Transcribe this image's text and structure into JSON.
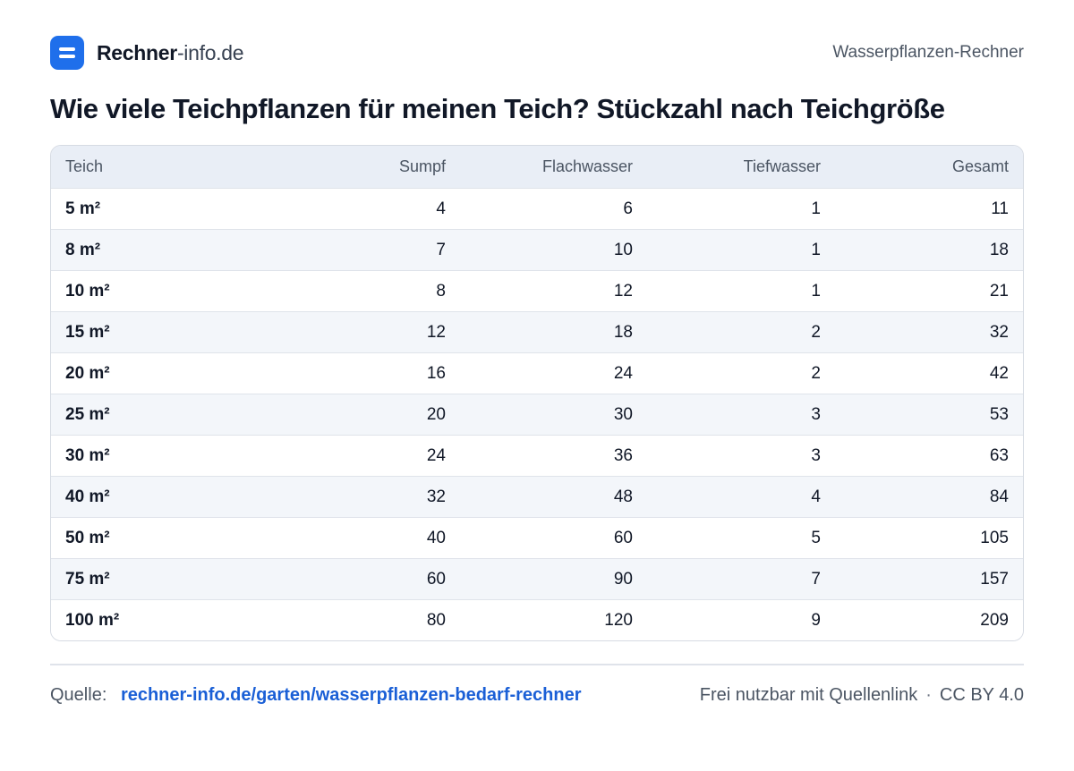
{
  "header": {
    "brand_strong": "Rechner",
    "brand_light": "-info.de",
    "logo_icon": "equals-icon",
    "right_label": "Wasserpflanzen-Rechner"
  },
  "title": "Wie viele Teichpflanzen für meinen Teich? Stückzahl nach Teichgröße",
  "table": {
    "columns": [
      "Teich",
      "Sumpf",
      "Flachwasser",
      "Tiefwasser",
      "Gesamt"
    ],
    "rows": [
      [
        "5 m²",
        "4",
        "6",
        "1",
        "11"
      ],
      [
        "8 m²",
        "7",
        "10",
        "1",
        "18"
      ],
      [
        "10 m²",
        "8",
        "12",
        "1",
        "21"
      ],
      [
        "15 m²",
        "12",
        "18",
        "2",
        "32"
      ],
      [
        "20 m²",
        "16",
        "24",
        "2",
        "42"
      ],
      [
        "25 m²",
        "20",
        "30",
        "3",
        "53"
      ],
      [
        "30 m²",
        "24",
        "36",
        "3",
        "63"
      ],
      [
        "40 m²",
        "32",
        "48",
        "4",
        "84"
      ],
      [
        "50 m²",
        "40",
        "60",
        "5",
        "105"
      ],
      [
        "75 m²",
        "60",
        "90",
        "7",
        "157"
      ],
      [
        "100 m²",
        "80",
        "120",
        "9",
        "209"
      ]
    ]
  },
  "footer": {
    "source_label": "Quelle:",
    "source_link": "rechner-info.de/garten/wasserpflanzen-bedarf-rechner",
    "license_text": "Frei nutzbar mit Quellenlink",
    "separator": "·",
    "license": "CC BY 4.0"
  },
  "colors": {
    "accent": "#1f6feb",
    "link": "#1a5fd6",
    "header_row_bg": "#e9eef6",
    "alt_row_bg": "#f3f6fa"
  }
}
